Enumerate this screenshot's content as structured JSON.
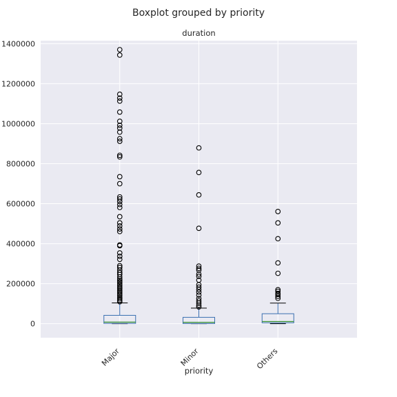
{
  "chart_data": {
    "type": "boxplot",
    "suptitle": "Boxplot grouped by priority",
    "title": "duration",
    "xlabel": "priority",
    "ylabel": "",
    "ylim": [
      -70000,
      1415000
    ],
    "yticks": [
      0,
      200000,
      400000,
      600000,
      800000,
      1000000,
      1200000,
      1400000
    ],
    "ytick_labels": [
      "0",
      "200000",
      "400000",
      "600000",
      "800000",
      "1000000",
      "1200000",
      "1400000"
    ],
    "grid": true,
    "categories": [
      "Major",
      "Minor",
      "Others"
    ],
    "boxes": [
      {
        "name": "Major",
        "whisker_low": 0,
        "q1": 1500,
        "median": 8000,
        "q3": 42000,
        "whisker_high": 104000,
        "outliers": [
          1370000,
          1343000,
          1147000,
          1128000,
          1113000,
          1058000,
          1012000,
          992000,
          978000,
          958000,
          925000,
          912000,
          842000,
          834000,
          735000,
          700000,
          634000,
          624000,
          611000,
          596000,
          581000,
          535000,
          504000,
          489000,
          474000,
          461000,
          394000,
          390000,
          354000,
          337000,
          322000,
          290000,
          281000,
          268000,
          256000,
          246000,
          234000,
          224000,
          216000,
          208000,
          199000,
          191000,
          182000,
          175000,
          166000,
          158000,
          150000,
          142000,
          133000,
          125000,
          117000,
          110000
        ]
      },
      {
        "name": "Minor",
        "whisker_low": 0,
        "q1": 800,
        "median": 7000,
        "q3": 32000,
        "whisker_high": 78000,
        "outliers": [
          879000,
          756000,
          644000,
          477000,
          288000,
          277000,
          268000,
          248000,
          237000,
          218000,
          195000,
          183000,
          171000,
          158000,
          143000,
          126000,
          114000,
          103000,
          93000,
          84000
        ]
      },
      {
        "name": "Others",
        "whisker_low": 0,
        "q1": 4000,
        "median": 11000,
        "q3": 50000,
        "whisker_high": 103000,
        "outliers": [
          561000,
          504000,
          425000,
          304000,
          252000,
          170000,
          162000,
          152000,
          146000,
          137000,
          127000
        ]
      }
    ],
    "colors": {
      "background": "#eaeaf2",
      "grid": "#ffffff",
      "box": "#3a6fb0",
      "median": "#2e8b2e",
      "whisker_cap": "#000000",
      "outlier": "#000000"
    }
  }
}
